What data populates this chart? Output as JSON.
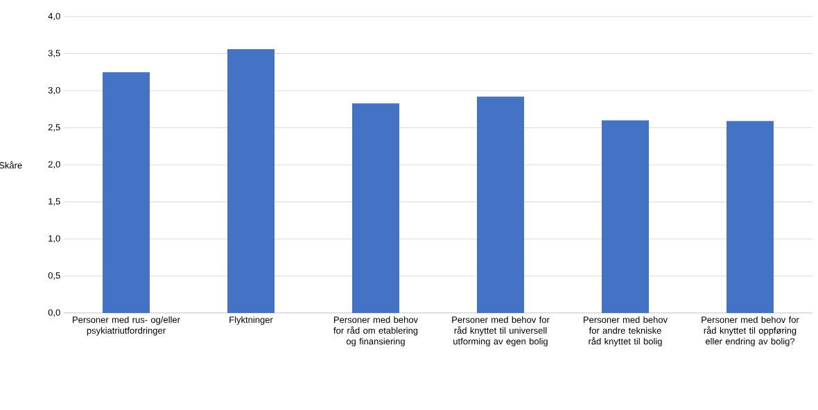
{
  "chart_data": {
    "type": "bar",
    "ylabel": "Skåre",
    "categories": [
      "Personer med rus- og/eller psykiatriutfordringer",
      "Flyktninger",
      "Personer med behov for råd om etablering og finansiering",
      "Personer med behov for råd knyttet til universell utforming av egen bolig",
      "Personer med behov for andre tekniske råd knyttet til bolig",
      "Personer med behov for råd knyttet til oppføring eller endring av bolig?"
    ],
    "values": [
      3.25,
      3.56,
      2.83,
      2.92,
      2.6,
      2.59
    ],
    "color": "#4472c4",
    "ylim": [
      0,
      4
    ],
    "yticks": [
      {
        "value": 0,
        "label": "0,0"
      },
      {
        "value": 0.5,
        "label": "0,5"
      },
      {
        "value": 1,
        "label": "1,0"
      },
      {
        "value": 1.5,
        "label": "1,5"
      },
      {
        "value": 2,
        "label": "2,0"
      },
      {
        "value": 2.5,
        "label": "2,5"
      },
      {
        "value": 3,
        "label": "3,0"
      },
      {
        "value": 3.5,
        "label": "3,5"
      },
      {
        "value": 4,
        "label": "4,0"
      }
    ],
    "grid": "y"
  }
}
